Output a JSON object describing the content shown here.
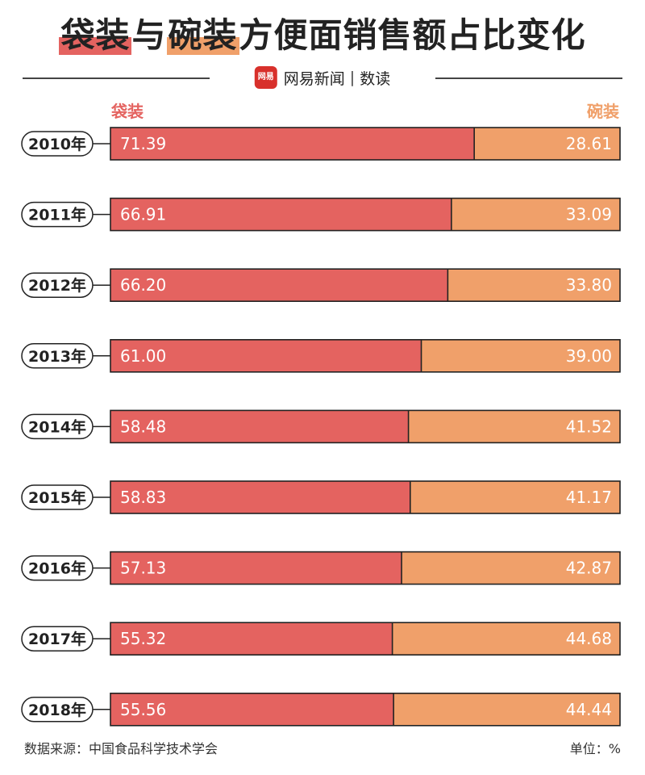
{
  "title": {
    "bag_word": "袋装",
    "mid_word": "与",
    "bowl_word": "碗装",
    "rest": "方便面销售额占比变化"
  },
  "brand": {
    "logo_text": "网易",
    "name": "网易新闻",
    "section": "数读"
  },
  "footer": {
    "source": "数据来源：中国食品科学技术学会",
    "unit": "单位：%"
  },
  "colors": {
    "bag": "#e46360",
    "bowl": "#f0a06a",
    "outline": "#222222"
  },
  "chart_data": {
    "type": "bar",
    "orientation": "horizontal",
    "stacked": true,
    "percent_stacked": true,
    "title": "袋装与碗装方便面销售额占比变化",
    "categories": [
      "2010年",
      "2011年",
      "2012年",
      "2013年",
      "2014年",
      "2015年",
      "2016年",
      "2017年",
      "2018年"
    ],
    "series": [
      {
        "name": "袋装",
        "values": [
          71.39,
          66.91,
          66.2,
          61.0,
          58.48,
          58.83,
          57.13,
          55.32,
          55.56
        ]
      },
      {
        "name": "碗装",
        "values": [
          28.61,
          33.09,
          33.8,
          39.0,
          41.52,
          41.17,
          42.87,
          44.68,
          44.44
        ]
      }
    ],
    "value_labels": {
      "袋装": [
        "71.39",
        "66.91",
        "66.20",
        "61.00",
        "58.48",
        "58.83",
        "57.13",
        "55.32",
        "55.56"
      ],
      "碗装": [
        "28.61",
        "33.09",
        "33.80",
        "39.00",
        "41.52",
        "41.17",
        "42.87",
        "44.68",
        "44.44"
      ]
    },
    "xlim": [
      0,
      100
    ],
    "legend": "top",
    "grid": false,
    "unit": "%"
  }
}
